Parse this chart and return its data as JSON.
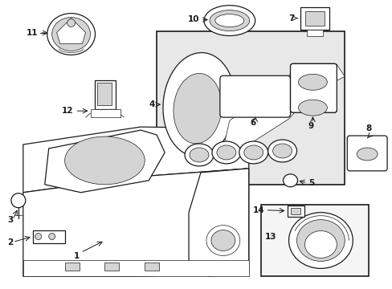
{
  "background_color": "#ffffff",
  "line_color": "#1a1a1a",
  "gray_fill": "#e8e8e8",
  "light_gray": "#d4d4d4",
  "fig_w": 4.89,
  "fig_h": 3.6,
  "dpi": 100,
  "lw_main": 0.9,
  "lw_thin": 0.5,
  "label_fontsize": 7.5
}
